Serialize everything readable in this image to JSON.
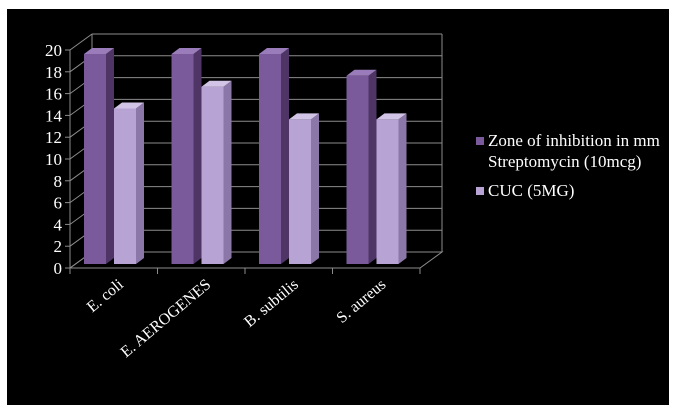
{
  "colors": {
    "background": "#000000",
    "grid": "#8c8c8c",
    "text": "#ffffff",
    "series_1_front": "#7a5a9a",
    "series_1_side": "#4e3566",
    "series_1_top": "#9a7cba",
    "series_2_front": "#b8a4d4",
    "series_2_side": "#8c78a8",
    "series_2_top": "#d2c4e6"
  },
  "chart_data": {
    "type": "bar",
    "style": "3d-clustered-column",
    "title": "",
    "xlabel": "",
    "ylabel": "",
    "categories": [
      "E. coli",
      "E. AEROGENES",
      "B. subtilis",
      "S. aureus"
    ],
    "series": [
      {
        "name": "Zone of inhibition in mm Streptomycin (10mcg)",
        "values": [
          20,
          20,
          20,
          18
        ]
      },
      {
        "name": "CUC (5MG)",
        "values": [
          15,
          17,
          14,
          14
        ]
      }
    ],
    "ylim": [
      0,
      20
    ],
    "yticks": [
      "0",
      "2",
      "4",
      "6",
      "8",
      "10",
      "12",
      "14",
      "16",
      "18",
      "20"
    ],
    "grid": true,
    "legend_position": "right"
  }
}
